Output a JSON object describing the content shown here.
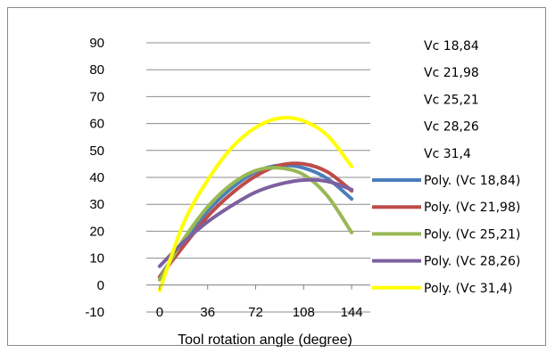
{
  "chart_data": {
    "type": "line",
    "xlabel": "Tool rotation angle (degree)",
    "ylabel": "",
    "title": "",
    "xlim": [
      -10,
      158
    ],
    "ylim": [
      -10,
      90
    ],
    "x_ticks": [
      0,
      36,
      72,
      108,
      144
    ],
    "y_ticks": [
      -10,
      0,
      10,
      20,
      30,
      40,
      50,
      60,
      70,
      80,
      90
    ],
    "grid": "horizontal",
    "legend_position": "right",
    "legend_markers_only": [
      "Vc 18,84",
      "Vc 21,98",
      "Vc 25,21",
      "Vc 28,26",
      "Vc 31,4"
    ],
    "series": [
      {
        "name": "Poly. (Vc 18,84)",
        "color": "#4a7ebb",
        "x": [
          0,
          18,
          36,
          54,
          72,
          90,
          108,
          126,
          144
        ],
        "y": [
          3,
          16,
          27.5,
          36,
          42,
          44.5,
          43.5,
          39.5,
          32
        ]
      },
      {
        "name": "Poly. (Vc 21,98)",
        "color": "#be4b48",
        "x": [
          0,
          18,
          36,
          54,
          72,
          90,
          108,
          126,
          144
        ],
        "y": [
          3,
          14.5,
          25.5,
          34,
          40.5,
          44.5,
          45,
          42,
          35
        ]
      },
      {
        "name": "Poly. (Vc 25,21)",
        "color": "#98b954",
        "x": [
          0,
          18,
          36,
          54,
          72,
          90,
          108,
          126,
          144
        ],
        "y": [
          2,
          17,
          29,
          37.5,
          42.5,
          43.5,
          41,
          33,
          19.5
        ]
      },
      {
        "name": "Poly. (Vc 28,26)",
        "color": "#7d60a0",
        "x": [
          0,
          18,
          36,
          54,
          72,
          90,
          108,
          126,
          144
        ],
        "y": [
          7,
          16,
          23.5,
          29.5,
          34.5,
          37.5,
          39,
          38.5,
          35.5
        ]
      },
      {
        "name": "Poly. (Vc 31,4)",
        "color": "#ffff00",
        "x": [
          0,
          18,
          36,
          54,
          72,
          90,
          108,
          126,
          144
        ],
        "y": [
          -2,
          23,
          39,
          51,
          58.5,
          62,
          61,
          55.5,
          44
        ]
      }
    ]
  }
}
